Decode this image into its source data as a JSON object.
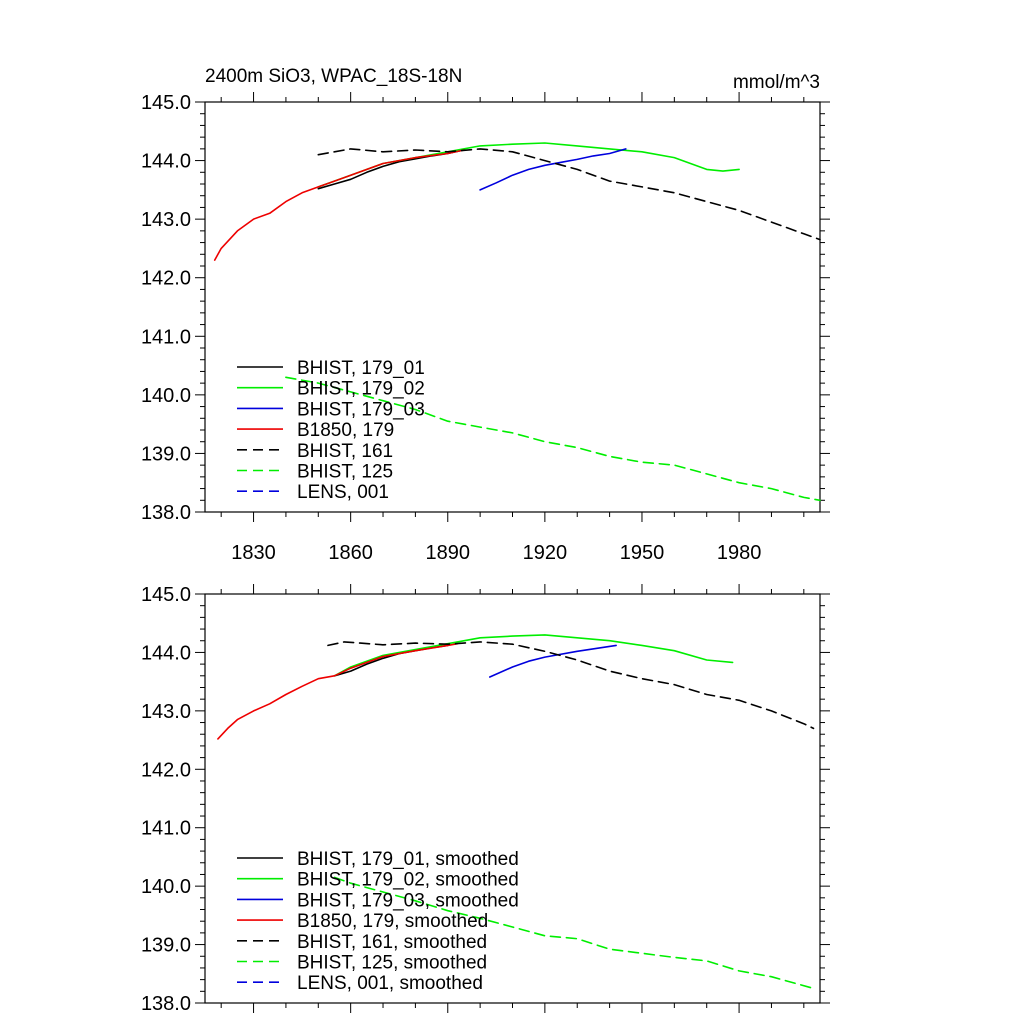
{
  "chart_data": [
    {
      "type": "line",
      "title": "2400m SiO3, WPAC_18S-18N",
      "units": "mmol/m^3",
      "xlim": [
        1815,
        2005
      ],
      "ylim": [
        138.0,
        145.0
      ],
      "xticks": [
        1830,
        1860,
        1890,
        1920,
        1950,
        1980
      ],
      "yticks": [
        138.0,
        139.0,
        140.0,
        141.0,
        142.0,
        143.0,
        144.0,
        145.0
      ],
      "grid": false,
      "legend_position": "lower-left",
      "series": [
        {
          "name": "BHIST, 179_01",
          "color": "#000000",
          "dash": "solid",
          "x": [
            1850,
            1855,
            1860,
            1865,
            1870,
            1875,
            1880,
            1885,
            1890,
            1895
          ],
          "y": [
            143.52,
            143.6,
            143.68,
            143.8,
            143.9,
            143.98,
            144.03,
            144.08,
            144.12,
            144.18
          ]
        },
        {
          "name": "BHIST, 179_02",
          "color": "#00ee00",
          "dash": "solid",
          "x": [
            1850,
            1860,
            1870,
            1880,
            1890,
            1900,
            1910,
            1920,
            1930,
            1940,
            1950,
            1960,
            1965,
            1970,
            1975,
            1980
          ],
          "y": [
            143.55,
            143.75,
            143.95,
            144.05,
            144.15,
            144.25,
            144.28,
            144.3,
            144.25,
            144.2,
            144.15,
            144.05,
            143.95,
            143.85,
            143.82,
            143.85
          ]
        },
        {
          "name": "BHIST, 179_03",
          "color": "#0000dd",
          "dash": "solid",
          "x": [
            1900,
            1905,
            1910,
            1915,
            1920,
            1925,
            1930,
            1935,
            1940,
            1945
          ],
          "y": [
            143.5,
            143.62,
            143.75,
            143.85,
            143.92,
            143.97,
            144.02,
            144.08,
            144.12,
            144.2
          ]
        },
        {
          "name": "B1850, 179",
          "color": "#ee0000",
          "dash": "solid",
          "x": [
            1818,
            1820,
            1825,
            1830,
            1835,
            1840,
            1845,
            1850,
            1855,
            1860,
            1870,
            1880,
            1890,
            1895
          ],
          "y": [
            142.3,
            142.5,
            142.8,
            143.0,
            143.1,
            143.3,
            143.45,
            143.55,
            143.65,
            143.75,
            143.95,
            144.05,
            144.12,
            144.18
          ]
        },
        {
          "name": "BHIST, 161",
          "color": "#000000",
          "dash": "dashed",
          "x": [
            1850,
            1855,
            1860,
            1870,
            1880,
            1890,
            1900,
            1910,
            1920,
            1930,
            1940,
            1950,
            1960,
            1970,
            1980,
            1990,
            2000,
            2005
          ],
          "y": [
            144.1,
            144.15,
            144.2,
            144.15,
            144.18,
            144.15,
            144.2,
            144.15,
            144.0,
            143.85,
            143.65,
            143.55,
            143.45,
            143.3,
            143.15,
            142.95,
            142.75,
            142.65
          ]
        },
        {
          "name": "BHIST, 125",
          "color": "#00ee00",
          "dash": "dashed",
          "x": [
            1840,
            1850,
            1860,
            1870,
            1880,
            1890,
            1900,
            1910,
            1920,
            1930,
            1940,
            1950,
            1960,
            1970,
            1980,
            1990,
            2000,
            2005
          ],
          "y": [
            140.3,
            140.2,
            140.05,
            139.9,
            139.75,
            139.55,
            139.45,
            139.35,
            139.2,
            139.1,
            138.95,
            138.85,
            138.8,
            138.65,
            138.5,
            138.4,
            138.25,
            138.2
          ]
        },
        {
          "name": "LENS, 001",
          "color": "#0000dd",
          "dash": "dashed",
          "x": [],
          "y": []
        }
      ]
    },
    {
      "type": "line",
      "title": "",
      "xlim": [
        1815,
        2005
      ],
      "ylim": [
        138.0,
        145.0
      ],
      "xticks": [
        1830,
        1860,
        1890,
        1920,
        1950,
        1980
      ],
      "yticks": [
        138.0,
        139.0,
        140.0,
        141.0,
        142.0,
        143.0,
        144.0,
        145.0
      ],
      "grid": false,
      "legend_position": "lower-left",
      "series": [
        {
          "name": "BHIST, 179_01, smoothed",
          "color": "#000000",
          "dash": "solid",
          "x": [
            1855,
            1860,
            1865,
            1870,
            1875,
            1880,
            1885,
            1890
          ],
          "y": [
            143.6,
            143.68,
            143.8,
            143.9,
            143.98,
            144.03,
            144.08,
            144.12
          ]
        },
        {
          "name": "BHIST, 179_02, smoothed",
          "color": "#00ee00",
          "dash": "solid",
          "x": [
            1855,
            1860,
            1870,
            1880,
            1890,
            1900,
            1910,
            1920,
            1930,
            1940,
            1950,
            1960,
            1970,
            1978
          ],
          "y": [
            143.6,
            143.75,
            143.95,
            144.05,
            144.15,
            144.25,
            144.28,
            144.3,
            144.25,
            144.2,
            144.12,
            144.03,
            143.87,
            143.83
          ]
        },
        {
          "name": "BHIST, 179_03, smoothed",
          "color": "#0000dd",
          "dash": "solid",
          "x": [
            1903,
            1910,
            1915,
            1920,
            1930,
            1942
          ],
          "y": [
            143.58,
            143.75,
            143.85,
            143.92,
            144.02,
            144.12
          ]
        },
        {
          "name": "B1850, 179, smoothed",
          "color": "#ee0000",
          "dash": "solid",
          "x": [
            1819,
            1822,
            1825,
            1830,
            1835,
            1840,
            1845,
            1850,
            1855,
            1860,
            1870,
            1880,
            1890,
            1893
          ],
          "y": [
            142.52,
            142.7,
            142.85,
            143.0,
            143.12,
            143.28,
            143.42,
            143.55,
            143.6,
            143.73,
            143.93,
            144.03,
            144.12,
            144.15
          ]
        },
        {
          "name": "BHIST, 161, smoothed",
          "color": "#000000",
          "dash": "dashed",
          "x": [
            1853,
            1858,
            1863,
            1870,
            1880,
            1890,
            1900,
            1910,
            1920,
            1930,
            1940,
            1950,
            1960,
            1970,
            1980,
            1990,
            2000,
            2003
          ],
          "y": [
            144.12,
            144.18,
            144.16,
            144.13,
            144.16,
            144.14,
            144.18,
            144.14,
            144.02,
            143.87,
            143.68,
            143.55,
            143.45,
            143.28,
            143.18,
            143.0,
            142.78,
            142.7
          ]
        },
        {
          "name": "BHIST, 125, smoothed",
          "color": "#00ee00",
          "dash": "dashed",
          "x": [
            1855,
            1860,
            1870,
            1880,
            1890,
            1900,
            1910,
            1920,
            1930,
            1940,
            1950,
            1960,
            1970,
            1980,
            1990,
            2003
          ],
          "y": [
            140.15,
            140.05,
            139.9,
            139.75,
            139.58,
            139.45,
            139.3,
            139.15,
            139.1,
            138.92,
            138.85,
            138.78,
            138.72,
            138.55,
            138.45,
            138.25
          ]
        },
        {
          "name": "LENS, 001, smoothed",
          "color": "#0000dd",
          "dash": "dashed",
          "x": [],
          "y": []
        }
      ]
    }
  ]
}
